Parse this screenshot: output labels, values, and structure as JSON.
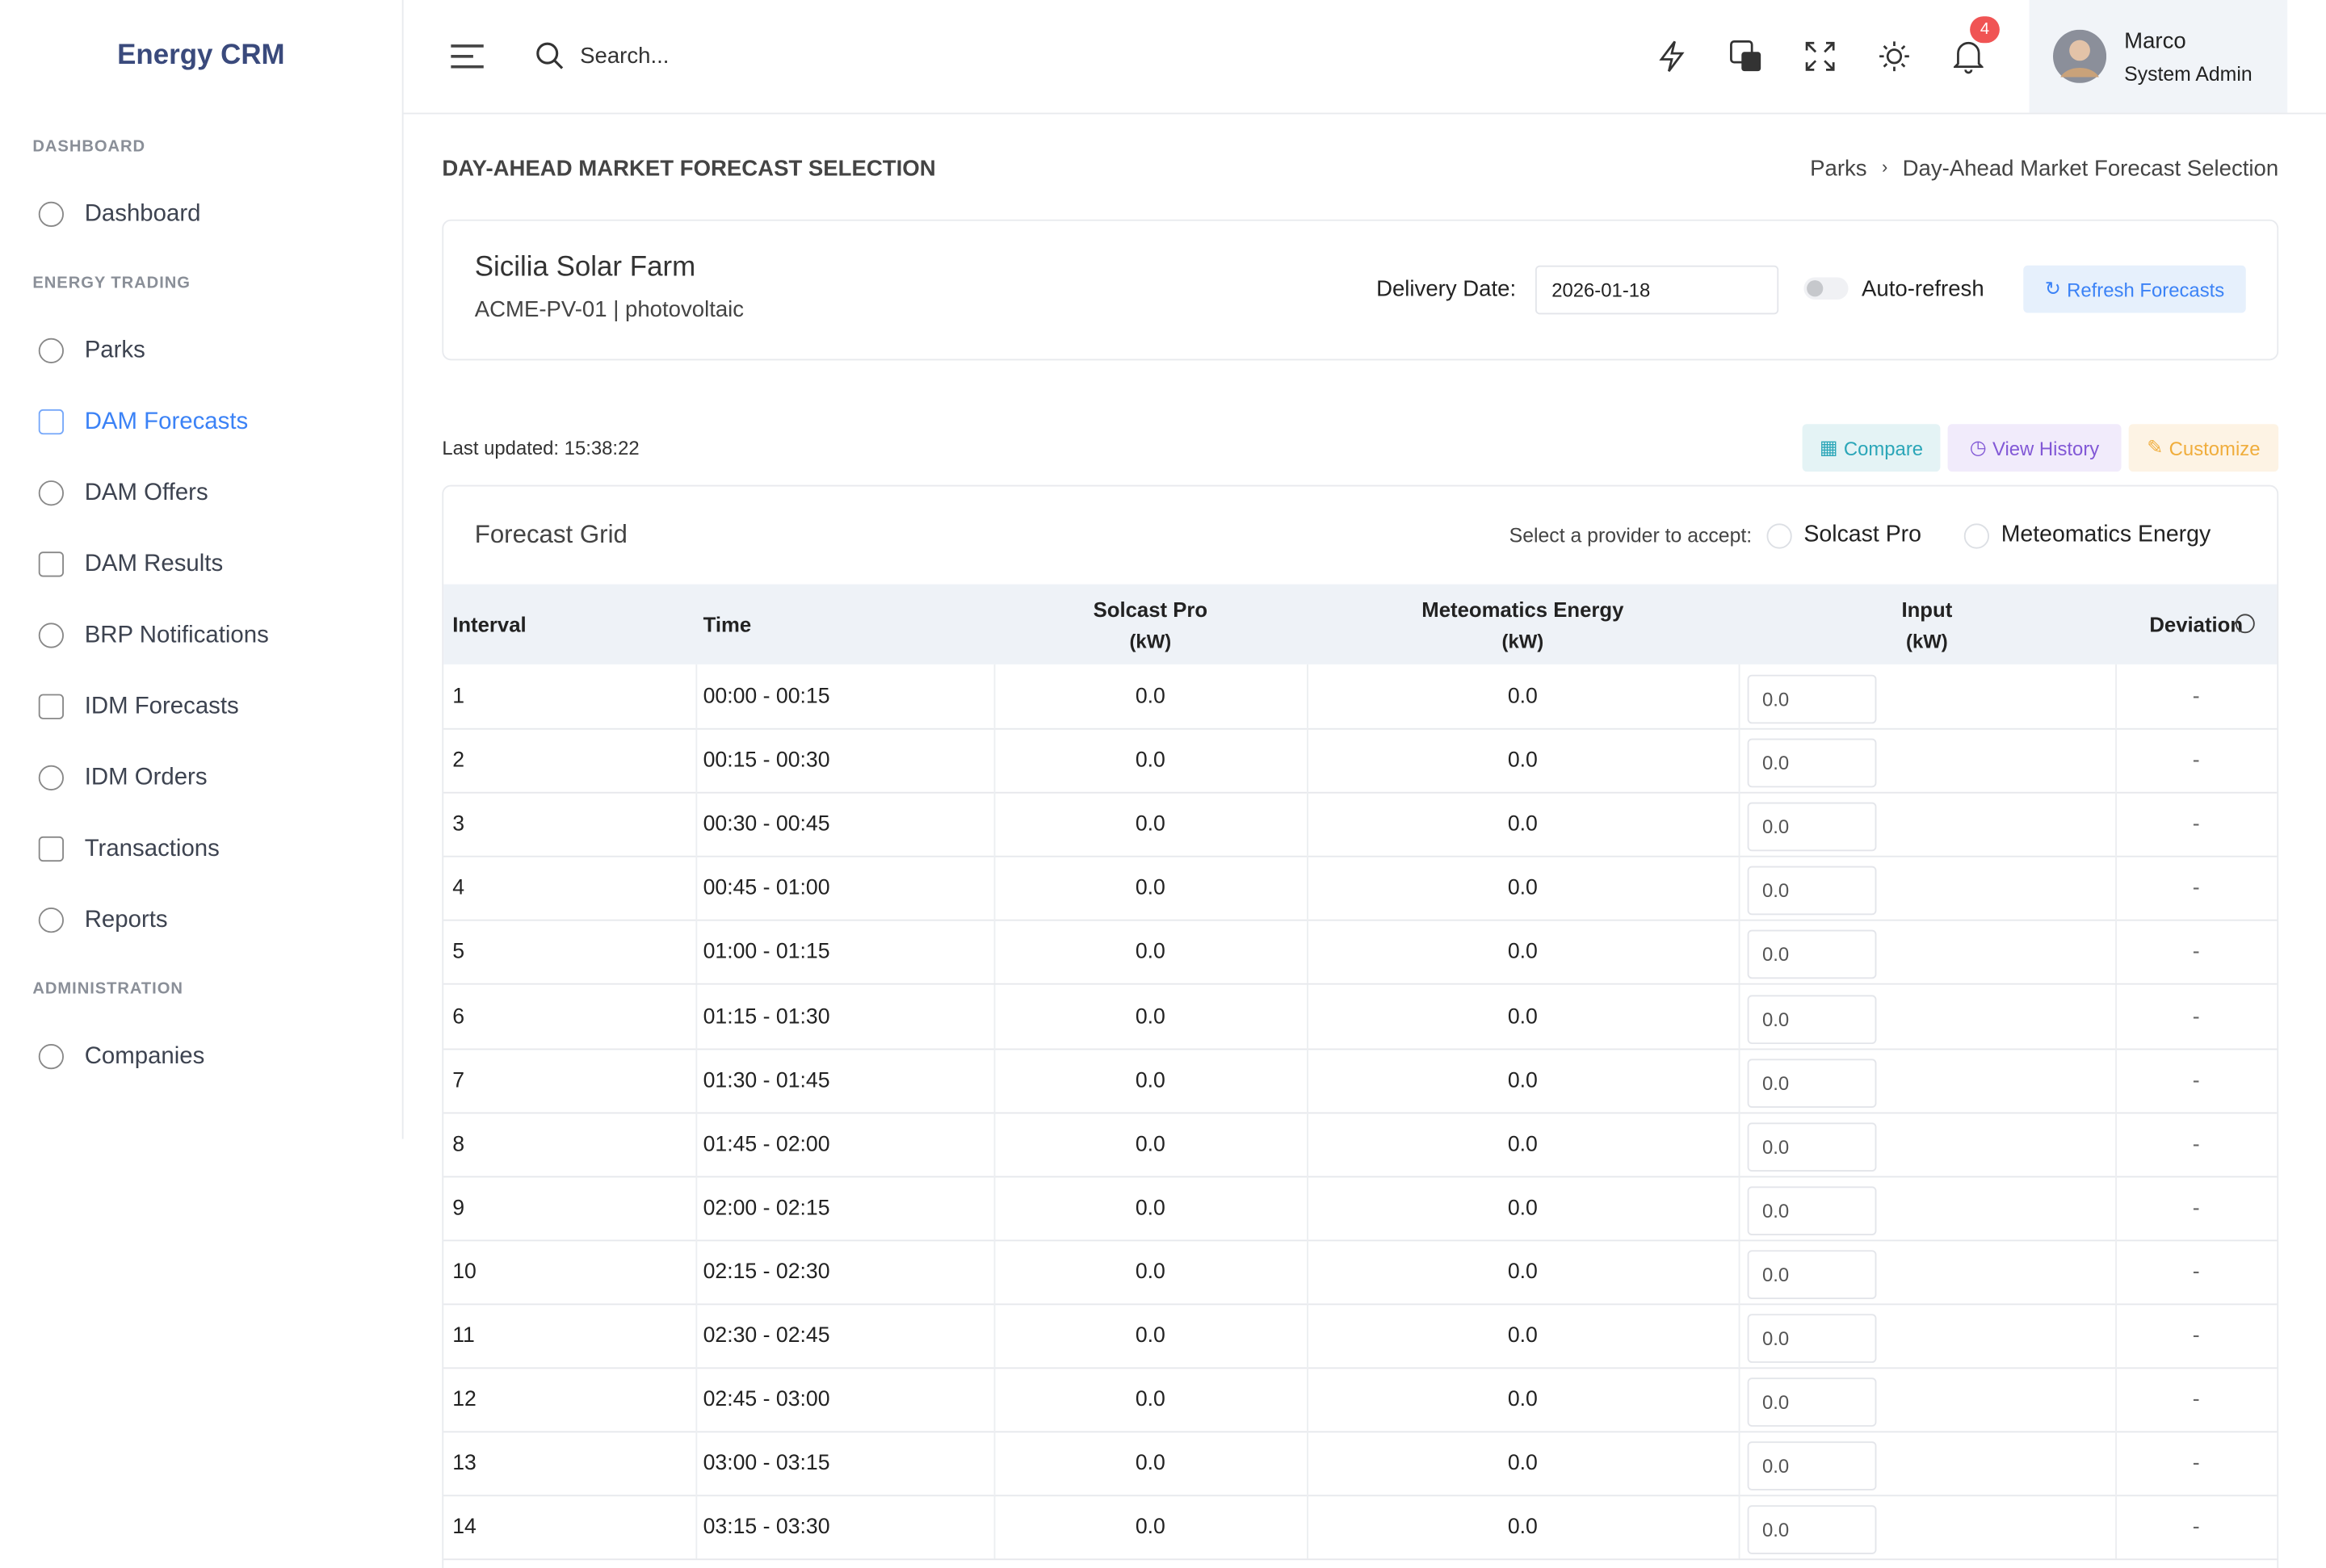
{
  "sidebar": {
    "brand": "Energy CRM",
    "sections": [
      {
        "title": "DASHBOARD",
        "items": [
          "Dashboard"
        ]
      },
      {
        "title": "ENERGY TRADING",
        "items": [
          "Parks",
          "DAM Forecasts",
          "DAM Offers",
          "DAM Results",
          "BRP Notifications",
          "IDM Forecasts",
          "IDM Orders",
          "Transactions",
          "Reports"
        ]
      },
      {
        "title": "ADMINISTRATION",
        "items": [
          "Companies"
        ]
      }
    ],
    "active": "DAM Forecasts"
  },
  "header": {
    "search": "Search...",
    "notifications": "4",
    "user": {
      "name": "Marco",
      "role": "System Admin"
    }
  },
  "page": {
    "title": "DAY-AHEAD MARKET FORECAST SELECTION",
    "breadcrumb": [
      "Parks",
      "Day-Ahead Market Forecast Selection"
    ]
  },
  "park": {
    "name": "Sicilia Solar Farm",
    "subtitle": "ACME-PV-01 | photovoltaic",
    "delivery_label": "Delivery Date:",
    "delivery_date": "2026-01-18",
    "auto_refresh": "Auto-refresh",
    "refresh_button": "Refresh Forecasts"
  },
  "toolbar": {
    "last_updated": "Last updated: 15:38:22",
    "buttons": [
      "Compare",
      "View History",
      "Customize"
    ]
  },
  "grid": {
    "title": "Forecast Grid",
    "prompt": "Select a provider to accept:",
    "providers": [
      "Solcast Pro",
      "Meteomatics Energy"
    ],
    "columns": [
      {
        "name": "Interval"
      },
      {
        "name": "Time"
      },
      {
        "name": "Solcast Pro",
        "unit": "(kW)"
      },
      {
        "name": "Meteomatics Energy",
        "unit": "(kW)"
      },
      {
        "name": "Input",
        "unit": "(kW)"
      },
      {
        "name": "Deviation"
      }
    ],
    "rows": [
      [
        "1",
        "00:00 - 00:15",
        "0.0",
        "0.0",
        "0.0",
        "-"
      ],
      [
        "2",
        "00:15 - 00:30",
        "0.0",
        "0.0",
        "0.0",
        "-"
      ],
      [
        "3",
        "00:30 - 00:45",
        "0.0",
        "0.0",
        "0.0",
        "-"
      ],
      [
        "4",
        "00:45 - 01:00",
        "0.0",
        "0.0",
        "0.0",
        "-"
      ],
      [
        "5",
        "01:00 - 01:15",
        "0.0",
        "0.0",
        "0.0",
        "-"
      ],
      [
        "6",
        "01:15 - 01:30",
        "0.0",
        "0.0",
        "0.0",
        "-"
      ],
      [
        "7",
        "01:30 - 01:45",
        "0.0",
        "0.0",
        "0.0",
        "-"
      ],
      [
        "8",
        "01:45 - 02:00",
        "0.0",
        "0.0",
        "0.0",
        "-"
      ],
      [
        "9",
        "02:00 - 02:15",
        "0.0",
        "0.0",
        "0.0",
        "-"
      ],
      [
        "10",
        "02:15 - 02:30",
        "0.0",
        "0.0",
        "0.0",
        "-"
      ],
      [
        "11",
        "02:30 - 02:45",
        "0.0",
        "0.0",
        "0.0",
        "-"
      ],
      [
        "12",
        "02:45 - 03:00",
        "0.0",
        "0.0",
        "0.0",
        "-"
      ],
      [
        "13",
        "03:00 - 03:15",
        "0.0",
        "0.0",
        "0.0",
        "-"
      ],
      [
        "14",
        "03:15 - 03:30",
        "0.0",
        "0.0",
        "0.0",
        "-"
      ]
    ]
  }
}
